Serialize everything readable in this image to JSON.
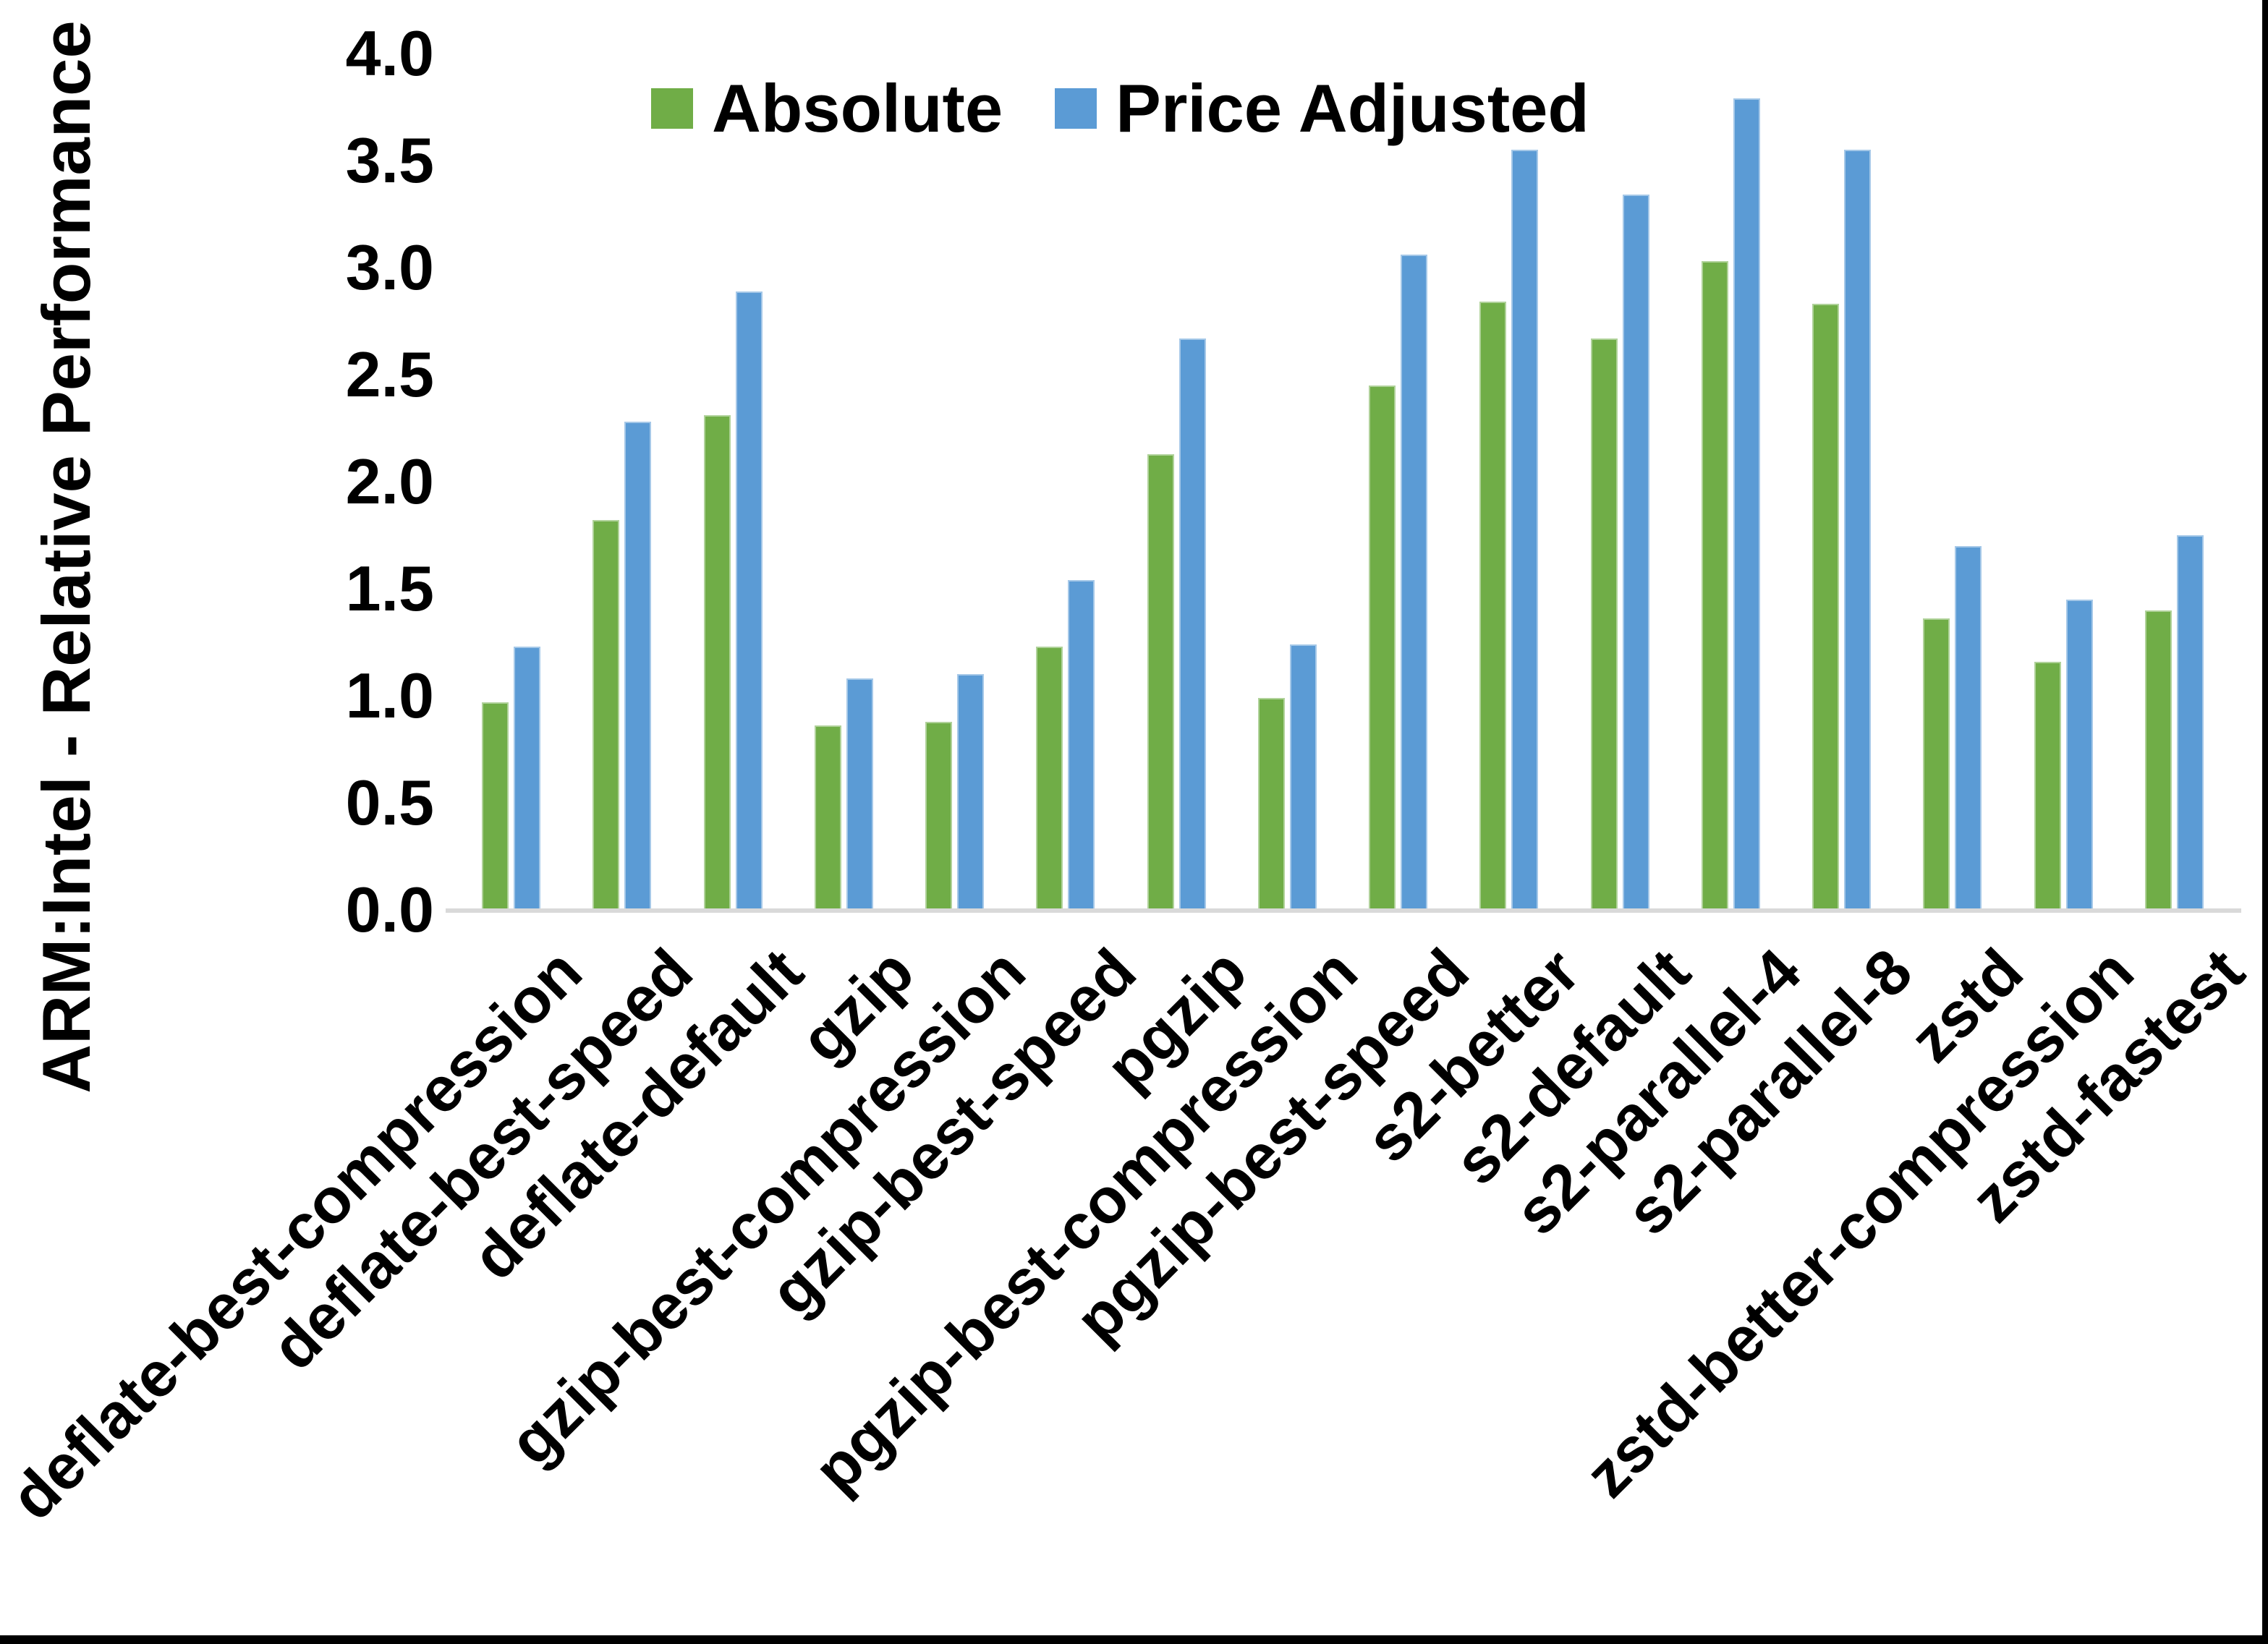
{
  "figure": {
    "border_color": "#000000",
    "background_color": "#ffffff",
    "axis_line_color": "#d9d9d9",
    "text_color": "#000000"
  },
  "legend": [
    {
      "label": "Absolute",
      "color": "#70AD47"
    },
    {
      "label": "Price Adjusted",
      "color": "#5B9BD5"
    }
  ],
  "chart_data": {
    "type": "bar",
    "title": "",
    "ylabel": "ARM:Intel - Relative Performance",
    "xlabel": "",
    "ylim": [
      0,
      4
    ],
    "yticks": [
      0.0,
      0.5,
      1.0,
      1.5,
      2.0,
      2.5,
      3.0,
      3.5,
      4.0
    ],
    "grid": false,
    "legend_position": "top",
    "categories": [
      "deflate-best-compression",
      "deflate-best-speed",
      "deflate-default",
      "gzip",
      "gzip-best-compression",
      "gzip-best-speed",
      "pgzip",
      "pgzip-best-compression",
      "pgzip-best-speed",
      "s2-better",
      "s2-default",
      "s2-parallel-4",
      "s2-parallel-8",
      "zstd",
      "zstd-better-compression",
      "zstd-fastest"
    ],
    "series": [
      {
        "name": "Absolute",
        "color": "#70AD47",
        "values": [
          0.97,
          1.82,
          2.31,
          0.86,
          0.88,
          1.23,
          2.13,
          0.99,
          2.45,
          2.84,
          2.67,
          3.03,
          2.83,
          1.36,
          1.16,
          1.4
        ]
      },
      {
        "name": "Price Adjusted",
        "color": "#5B9BD5",
        "values": [
          1.23,
          2.28,
          2.89,
          1.08,
          1.1,
          1.54,
          2.67,
          1.24,
          3.06,
          3.55,
          3.34,
          3.79,
          3.55,
          1.7,
          1.45,
          1.75
        ]
      }
    ]
  }
}
